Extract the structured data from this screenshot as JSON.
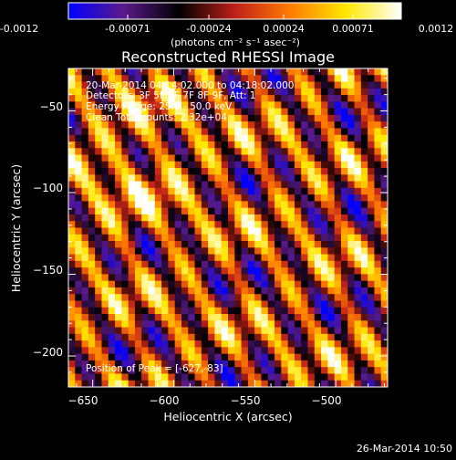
{
  "colorbar": {
    "ticks": [
      "-0.0012",
      "-0.00071",
      "-0.00024",
      "0.00024",
      "0.00071",
      "0.0012"
    ],
    "unit_label": "(photons cm⁻² s⁻¹ asec⁻²)",
    "range": [
      -0.0012,
      0.0012
    ],
    "colors": [
      "#0000ff",
      "#5a1a8a",
      "#000000",
      "#c0201a",
      "#ff7b00",
      "#ffe800",
      "#ffffff"
    ]
  },
  "chart_data": {
    "type": "heatmap",
    "title": "Reconstructed RHESSI Image",
    "xlabel": "Heliocentric X (arcsec)",
    "ylabel": "Heliocentric Y (arcsec)",
    "xlim": [
      -665,
      -468
    ],
    "ylim": [
      -219,
      -24
    ],
    "xticks": [
      -650,
      -600,
      -550,
      -500
    ],
    "yticks": [
      -50,
      -100,
      -150,
      -200
    ],
    "xtick_labels": [
      "−650",
      "−600",
      "−550",
      "−500"
    ],
    "ytick_labels": [
      "−50",
      "−100",
      "−150",
      "−200"
    ],
    "grid": false,
    "annotations": [
      "20-Mar-2014 04:14:02.000 to 04:18:02.000",
      "Detectors: 3F 5F 6F 7F 8F 9F, Att: 1",
      "Energy Range: 25.0 - 50.0 keV",
      "Clean    Total counts: 2.32e+04"
    ],
    "peak_label": "Position of Peak = [-627,-83]",
    "peak": [
      -627,
      -83
    ]
  },
  "footer": {
    "timestamp": "26-Mar-2014 10:50"
  }
}
